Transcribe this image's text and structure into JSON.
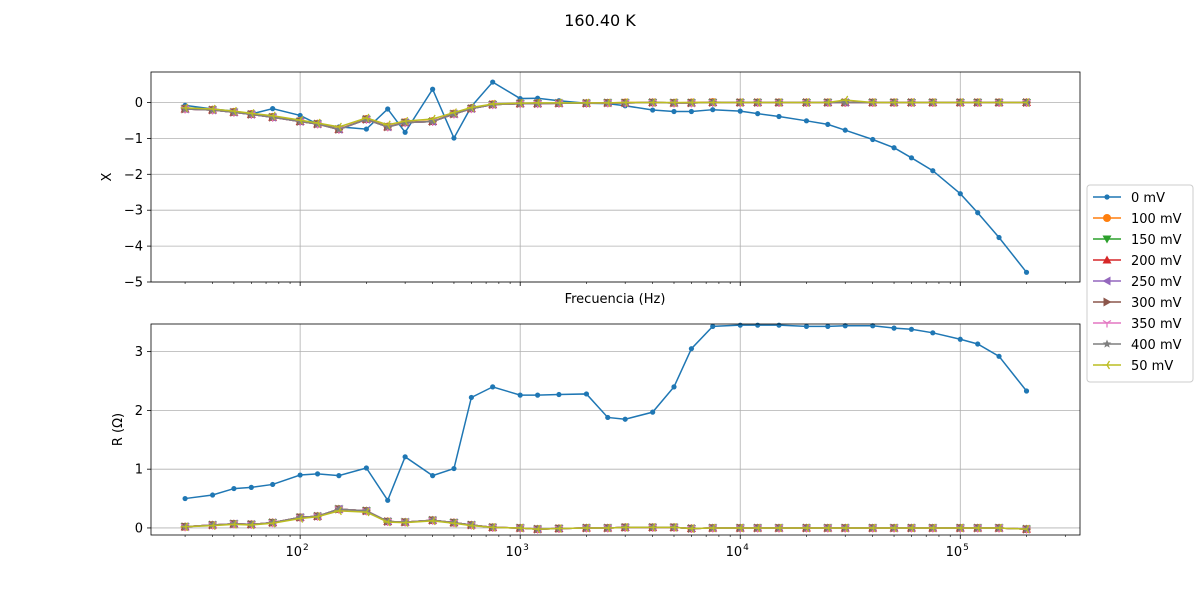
{
  "chart_data": {
    "title": "160.40 K",
    "type": "line",
    "xscale": "log",
    "xlim": [
      21,
      350000
    ],
    "xlabel_shared": "Frecuencia (Hz)",
    "legend_placement": "right-center",
    "grid": true,
    "x": [
      30,
      40,
      50,
      60,
      75,
      100,
      120,
      150,
      200,
      250,
      300,
      400,
      500,
      600,
      750,
      1000,
      1200,
      1500,
      2000,
      2500,
      3000,
      4000,
      5000,
      6000,
      7500,
      10000,
      12000,
      15000,
      20000,
      25000,
      30000,
      40000,
      50000,
      60000,
      75000,
      100000,
      120000,
      150000,
      200000
    ],
    "xtick_labels": [
      "10",
      "10",
      "10"
    ],
    "xtick_exponents": [
      "2",
      "3",
      "4",
      "5"
    ],
    "legend_entries": [
      "0 mV",
      "100 mV",
      "150 mV",
      "200 mV",
      "250 mV",
      "300 mV",
      "350 mV",
      "400 mV",
      "50 mV"
    ],
    "colors": [
      "#1f77b4",
      "#ff7f0e",
      "#2ca02c",
      "#d62728",
      "#9467bd",
      "#8c564b",
      "#e377c2",
      "#7f7f7f",
      "#bcbd22"
    ],
    "markers": [
      "point",
      "circle",
      "triangle-down",
      "triangle-up",
      "triangle-left",
      "triangle-right",
      "tri-down",
      "star",
      "tri-left"
    ],
    "panels": [
      {
        "ylabel": "X",
        "ylim": [
          -5,
          0.85
        ],
        "yticks": [
          0,
          -1,
          -2,
          -3,
          -4,
          -5
        ],
        "ytick_labels": [
          "0",
          "−1",
          "−2",
          "−3",
          "−4",
          "−5"
        ],
        "series": [
          {
            "name": "0 mV",
            "values": [
              -0.08,
              -0.18,
              -0.24,
              -0.32,
              -0.17,
              -0.36,
              -0.6,
              -0.68,
              -0.74,
              -0.18,
              -0.83,
              0.37,
              -0.99,
              -0.11,
              0.57,
              0.11,
              0.12,
              0.05,
              -0.02,
              -0.03,
              -0.09,
              -0.21,
              -0.25,
              -0.25,
              -0.2,
              -0.24,
              -0.31,
              -0.39,
              -0.51,
              -0.61,
              -0.77,
              -1.03,
              -1.26,
              -1.54,
              -1.9,
              -2.54,
              -3.07,
              -3.76,
              -4.73
            ]
          },
          {
            "name": "100 mV",
            "values": [
              -0.17,
              -0.2,
              -0.26,
              -0.32,
              -0.4,
              -0.52,
              -0.59,
              -0.74,
              -0.46,
              -0.67,
              -0.55,
              -0.52,
              -0.31,
              -0.16,
              -0.05,
              -0.02,
              -0.02,
              -0.02,
              -0.02,
              -0.01,
              0.0,
              0.0,
              -0.01,
              0.0,
              0.01,
              0.0,
              0.0,
              0.0,
              0.0,
              0.0,
              0.0,
              0.0,
              0.0,
              0.0,
              0.0,
              0.0,
              0.0,
              0.0,
              0.0
            ]
          },
          {
            "name": "150 mV",
            "values": [
              -0.18,
              -0.21,
              -0.27,
              -0.33,
              -0.41,
              -0.53,
              -0.6,
              -0.75,
              -0.47,
              -0.68,
              -0.56,
              -0.53,
              -0.32,
              -0.17,
              -0.06,
              -0.03,
              -0.03,
              -0.02,
              -0.02,
              -0.01,
              -0.01,
              0.0,
              -0.01,
              -0.01,
              0.0,
              0.0,
              0.0,
              0.0,
              0.0,
              0.0,
              0.0,
              0.0,
              0.0,
              0.0,
              0.0,
              0.0,
              0.0,
              0.0,
              0.0
            ]
          },
          {
            "name": "200 mV",
            "values": [
              -0.18,
              -0.21,
              -0.27,
              -0.33,
              -0.41,
              -0.53,
              -0.6,
              -0.75,
              -0.47,
              -0.68,
              -0.56,
              -0.53,
              -0.32,
              -0.17,
              -0.06,
              -0.03,
              -0.03,
              -0.02,
              -0.02,
              -0.01,
              -0.01,
              0.0,
              -0.01,
              -0.01,
              0.0,
              0.0,
              0.0,
              0.0,
              0.0,
              0.0,
              0.0,
              0.0,
              0.0,
              0.0,
              0.0,
              0.0,
              0.0,
              0.0,
              0.0
            ]
          },
          {
            "name": "250 mV",
            "values": [
              -0.18,
              -0.21,
              -0.27,
              -0.33,
              -0.41,
              -0.53,
              -0.6,
              -0.75,
              -0.47,
              -0.68,
              -0.56,
              -0.53,
              -0.32,
              -0.17,
              -0.06,
              -0.03,
              -0.03,
              -0.02,
              -0.02,
              -0.01,
              -0.01,
              0.0,
              -0.01,
              -0.01,
              0.0,
              0.0,
              0.0,
              0.0,
              0.0,
              0.0,
              0.0,
              0.0,
              0.0,
              0.0,
              0.0,
              0.0,
              0.0,
              0.0,
              0.0
            ]
          },
          {
            "name": "300 mV",
            "values": [
              -0.18,
              -0.21,
              -0.27,
              -0.33,
              -0.41,
              -0.53,
              -0.6,
              -0.75,
              -0.47,
              -0.68,
              -0.56,
              -0.53,
              -0.32,
              -0.17,
              -0.06,
              -0.03,
              -0.03,
              -0.02,
              -0.02,
              -0.01,
              -0.01,
              0.0,
              -0.01,
              -0.01,
              0.0,
              0.0,
              0.0,
              0.0,
              0.0,
              0.0,
              0.0,
              0.0,
              0.0,
              0.0,
              0.0,
              0.0,
              0.0,
              0.0,
              0.0
            ]
          },
          {
            "name": "350 mV",
            "values": [
              -0.18,
              -0.21,
              -0.27,
              -0.33,
              -0.41,
              -0.53,
              -0.6,
              -0.75,
              -0.47,
              -0.68,
              -0.56,
              -0.53,
              -0.32,
              -0.17,
              -0.06,
              -0.03,
              -0.03,
              -0.02,
              -0.02,
              -0.01,
              -0.01,
              0.0,
              -0.01,
              -0.01,
              0.0,
              0.0,
              0.0,
              0.0,
              0.0,
              0.0,
              0.0,
              0.0,
              0.0,
              0.0,
              0.0,
              0.0,
              0.0,
              0.0,
              0.0
            ]
          },
          {
            "name": "400 mV",
            "values": [
              -0.18,
              -0.21,
              -0.27,
              -0.33,
              -0.41,
              -0.53,
              -0.6,
              -0.75,
              -0.47,
              -0.68,
              -0.56,
              -0.53,
              -0.32,
              -0.17,
              -0.06,
              -0.03,
              -0.03,
              -0.02,
              -0.02,
              -0.01,
              -0.01,
              0.0,
              -0.01,
              -0.01,
              0.0,
              0.0,
              0.0,
              0.0,
              0.0,
              0.0,
              0.0,
              0.0,
              0.0,
              0.0,
              0.0,
              0.0,
              0.0,
              0.0,
              0.0
            ]
          },
          {
            "name": "50 mV",
            "values": [
              -0.15,
              -0.18,
              -0.24,
              -0.3,
              -0.37,
              -0.49,
              -0.57,
              -0.68,
              -0.43,
              -0.62,
              -0.52,
              -0.46,
              -0.28,
              -0.14,
              -0.04,
              -0.02,
              -0.01,
              -0.01,
              -0.01,
              -0.01,
              0.0,
              0.0,
              0.0,
              0.0,
              0.0,
              0.0,
              0.0,
              0.0,
              0.0,
              0.0,
              0.07,
              0.0,
              0.0,
              0.0,
              0.0,
              0.0,
              0.0,
              0.0,
              0.0
            ]
          }
        ]
      },
      {
        "ylabel": "R (Ω)",
        "ylim": [
          -0.12,
          3.47
        ],
        "yticks": [
          0,
          1,
          2,
          3
        ],
        "ytick_labels": [
          "0",
          "1",
          "2",
          "3"
        ],
        "series": [
          {
            "name": "0 mV",
            "values": [
              0.5,
              0.56,
              0.67,
              0.69,
              0.74,
              0.9,
              0.92,
              0.89,
              1.02,
              0.47,
              1.21,
              0.89,
              1.01,
              2.22,
              2.4,
              2.26,
              2.26,
              2.27,
              2.28,
              1.88,
              1.85,
              1.97,
              2.4,
              3.05,
              3.43,
              3.45,
              3.45,
              3.45,
              3.43,
              3.43,
              3.44,
              3.44,
              3.4,
              3.38,
              3.32,
              3.21,
              3.13,
              2.92,
              2.33
            ]
          },
          {
            "name": "100 mV",
            "values": [
              0.02,
              0.05,
              0.07,
              0.06,
              0.09,
              0.18,
              0.2,
              0.32,
              0.29,
              0.11,
              0.1,
              0.13,
              0.09,
              0.05,
              0.01,
              0.0,
              -0.02,
              -0.01,
              0.0,
              0.0,
              0.01,
              0.01,
              0.01,
              -0.01,
              0.0,
              0.0,
              0.0,
              0.0,
              0.0,
              0.0,
              0.0,
              0.0,
              0.0,
              0.0,
              0.0,
              0.0,
              0.0,
              0.0,
              -0.02
            ]
          },
          {
            "name": "150 mV",
            "values": [
              0.02,
              0.05,
              0.07,
              0.06,
              0.09,
              0.18,
              0.2,
              0.32,
              0.29,
              0.11,
              0.1,
              0.13,
              0.09,
              0.05,
              0.01,
              0.0,
              -0.02,
              -0.01,
              0.0,
              0.0,
              0.01,
              0.01,
              0.01,
              -0.01,
              0.0,
              0.0,
              0.0,
              0.0,
              0.0,
              0.0,
              0.0,
              0.0,
              0.0,
              0.0,
              0.0,
              0.0,
              0.0,
              0.0,
              -0.02
            ]
          },
          {
            "name": "200 mV",
            "values": [
              0.02,
              0.05,
              0.07,
              0.06,
              0.09,
              0.18,
              0.2,
              0.32,
              0.29,
              0.11,
              0.1,
              0.13,
              0.09,
              0.05,
              0.01,
              0.0,
              -0.02,
              -0.01,
              0.0,
              0.0,
              0.01,
              0.01,
              0.01,
              -0.01,
              0.0,
              0.0,
              0.0,
              0.0,
              0.0,
              0.0,
              0.0,
              0.0,
              0.0,
              0.0,
              0.0,
              0.0,
              0.0,
              0.0,
              -0.02
            ]
          },
          {
            "name": "250 mV",
            "values": [
              0.02,
              0.05,
              0.07,
              0.06,
              0.09,
              0.18,
              0.2,
              0.32,
              0.29,
              0.11,
              0.1,
              0.13,
              0.09,
              0.05,
              0.01,
              0.0,
              -0.02,
              -0.01,
              0.0,
              0.0,
              0.01,
              0.01,
              0.01,
              -0.01,
              0.0,
              0.0,
              0.0,
              0.0,
              0.0,
              0.0,
              0.0,
              0.0,
              0.0,
              0.0,
              0.0,
              0.0,
              0.0,
              0.0,
              -0.02
            ]
          },
          {
            "name": "300 mV",
            "values": [
              0.02,
              0.05,
              0.07,
              0.06,
              0.09,
              0.18,
              0.2,
              0.32,
              0.29,
              0.11,
              0.1,
              0.13,
              0.09,
              0.05,
              0.01,
              0.0,
              -0.02,
              -0.01,
              0.0,
              0.0,
              0.01,
              0.01,
              0.01,
              -0.01,
              0.0,
              0.0,
              0.0,
              0.0,
              0.0,
              0.0,
              0.0,
              0.0,
              0.0,
              0.0,
              0.0,
              0.0,
              0.0,
              0.0,
              -0.02
            ]
          },
          {
            "name": "350 mV",
            "values": [
              0.02,
              0.05,
              0.07,
              0.06,
              0.09,
              0.18,
              0.2,
              0.32,
              0.29,
              0.11,
              0.1,
              0.13,
              0.09,
              0.05,
              0.01,
              0.0,
              -0.02,
              -0.01,
              0.0,
              0.0,
              0.01,
              0.01,
              0.01,
              -0.01,
              0.0,
              0.0,
              0.0,
              0.0,
              0.0,
              0.0,
              0.0,
              0.0,
              0.0,
              0.0,
              0.0,
              0.0,
              0.0,
              0.0,
              -0.02
            ]
          },
          {
            "name": "400 mV",
            "values": [
              0.02,
              0.05,
              0.07,
              0.06,
              0.09,
              0.18,
              0.2,
              0.32,
              0.29,
              0.11,
              0.1,
              0.13,
              0.09,
              0.05,
              0.01,
              0.0,
              -0.02,
              -0.01,
              0.0,
              0.0,
              0.01,
              0.01,
              0.01,
              -0.01,
              0.0,
              0.0,
              0.0,
              0.0,
              0.0,
              0.0,
              0.0,
              0.0,
              0.0,
              0.0,
              0.0,
              0.0,
              0.0,
              0.0,
              -0.02
            ]
          },
          {
            "name": "50 mV",
            "values": [
              0.02,
              0.04,
              0.06,
              0.05,
              0.08,
              0.16,
              0.19,
              0.29,
              0.27,
              0.1,
              0.09,
              0.12,
              0.08,
              0.04,
              0.01,
              0.0,
              -0.02,
              -0.01,
              0.0,
              0.0,
              0.01,
              0.01,
              0.01,
              -0.01,
              0.0,
              0.0,
              0.0,
              0.0,
              0.0,
              0.0,
              0.0,
              0.0,
              0.0,
              0.0,
              0.0,
              0.0,
              0.0,
              0.0,
              -0.02
            ]
          }
        ]
      }
    ]
  }
}
